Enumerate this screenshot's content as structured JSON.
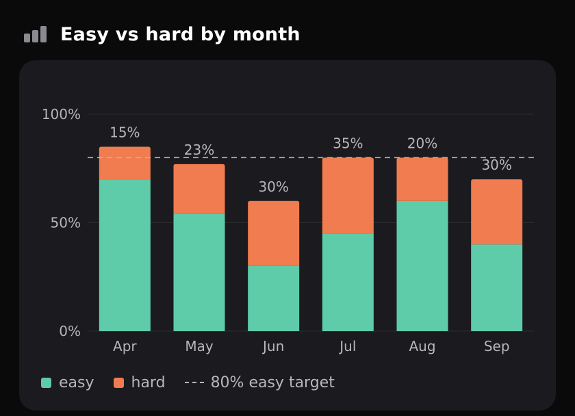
{
  "header": {
    "title": "Easy vs hard by month",
    "icon": "bar-chart-icon"
  },
  "colors": {
    "easy": "#5ecca8",
    "hard": "#f07c4f",
    "background": "#0a0a0b",
    "card": "#1b1b1f",
    "text_muted": "#b6b6bc"
  },
  "legend": {
    "easy_label": "easy",
    "hard_label": "hard",
    "target_label": "80% easy target"
  },
  "chart_data": {
    "type": "bar",
    "stacked": true,
    "categories": [
      "Apr",
      "May",
      "Jun",
      "Jul",
      "Aug",
      "Sep"
    ],
    "series": [
      {
        "name": "easy",
        "values": [
          70,
          54,
          30,
          45,
          60,
          40
        ]
      },
      {
        "name": "hard",
        "values": [
          15,
          23,
          30,
          35,
          20,
          30
        ]
      }
    ],
    "data_labels": [
      "15%",
      "23%",
      "30%",
      "35%",
      "20%",
      "30%"
    ],
    "reference_line": {
      "value": 80,
      "label": "80% easy target"
    },
    "ylim": [
      0,
      100
    ],
    "yticks": [
      0,
      50,
      100
    ],
    "ytick_labels": [
      "0%",
      "50%",
      "100%"
    ],
    "grid": true,
    "legend_position": "bottom-left"
  }
}
